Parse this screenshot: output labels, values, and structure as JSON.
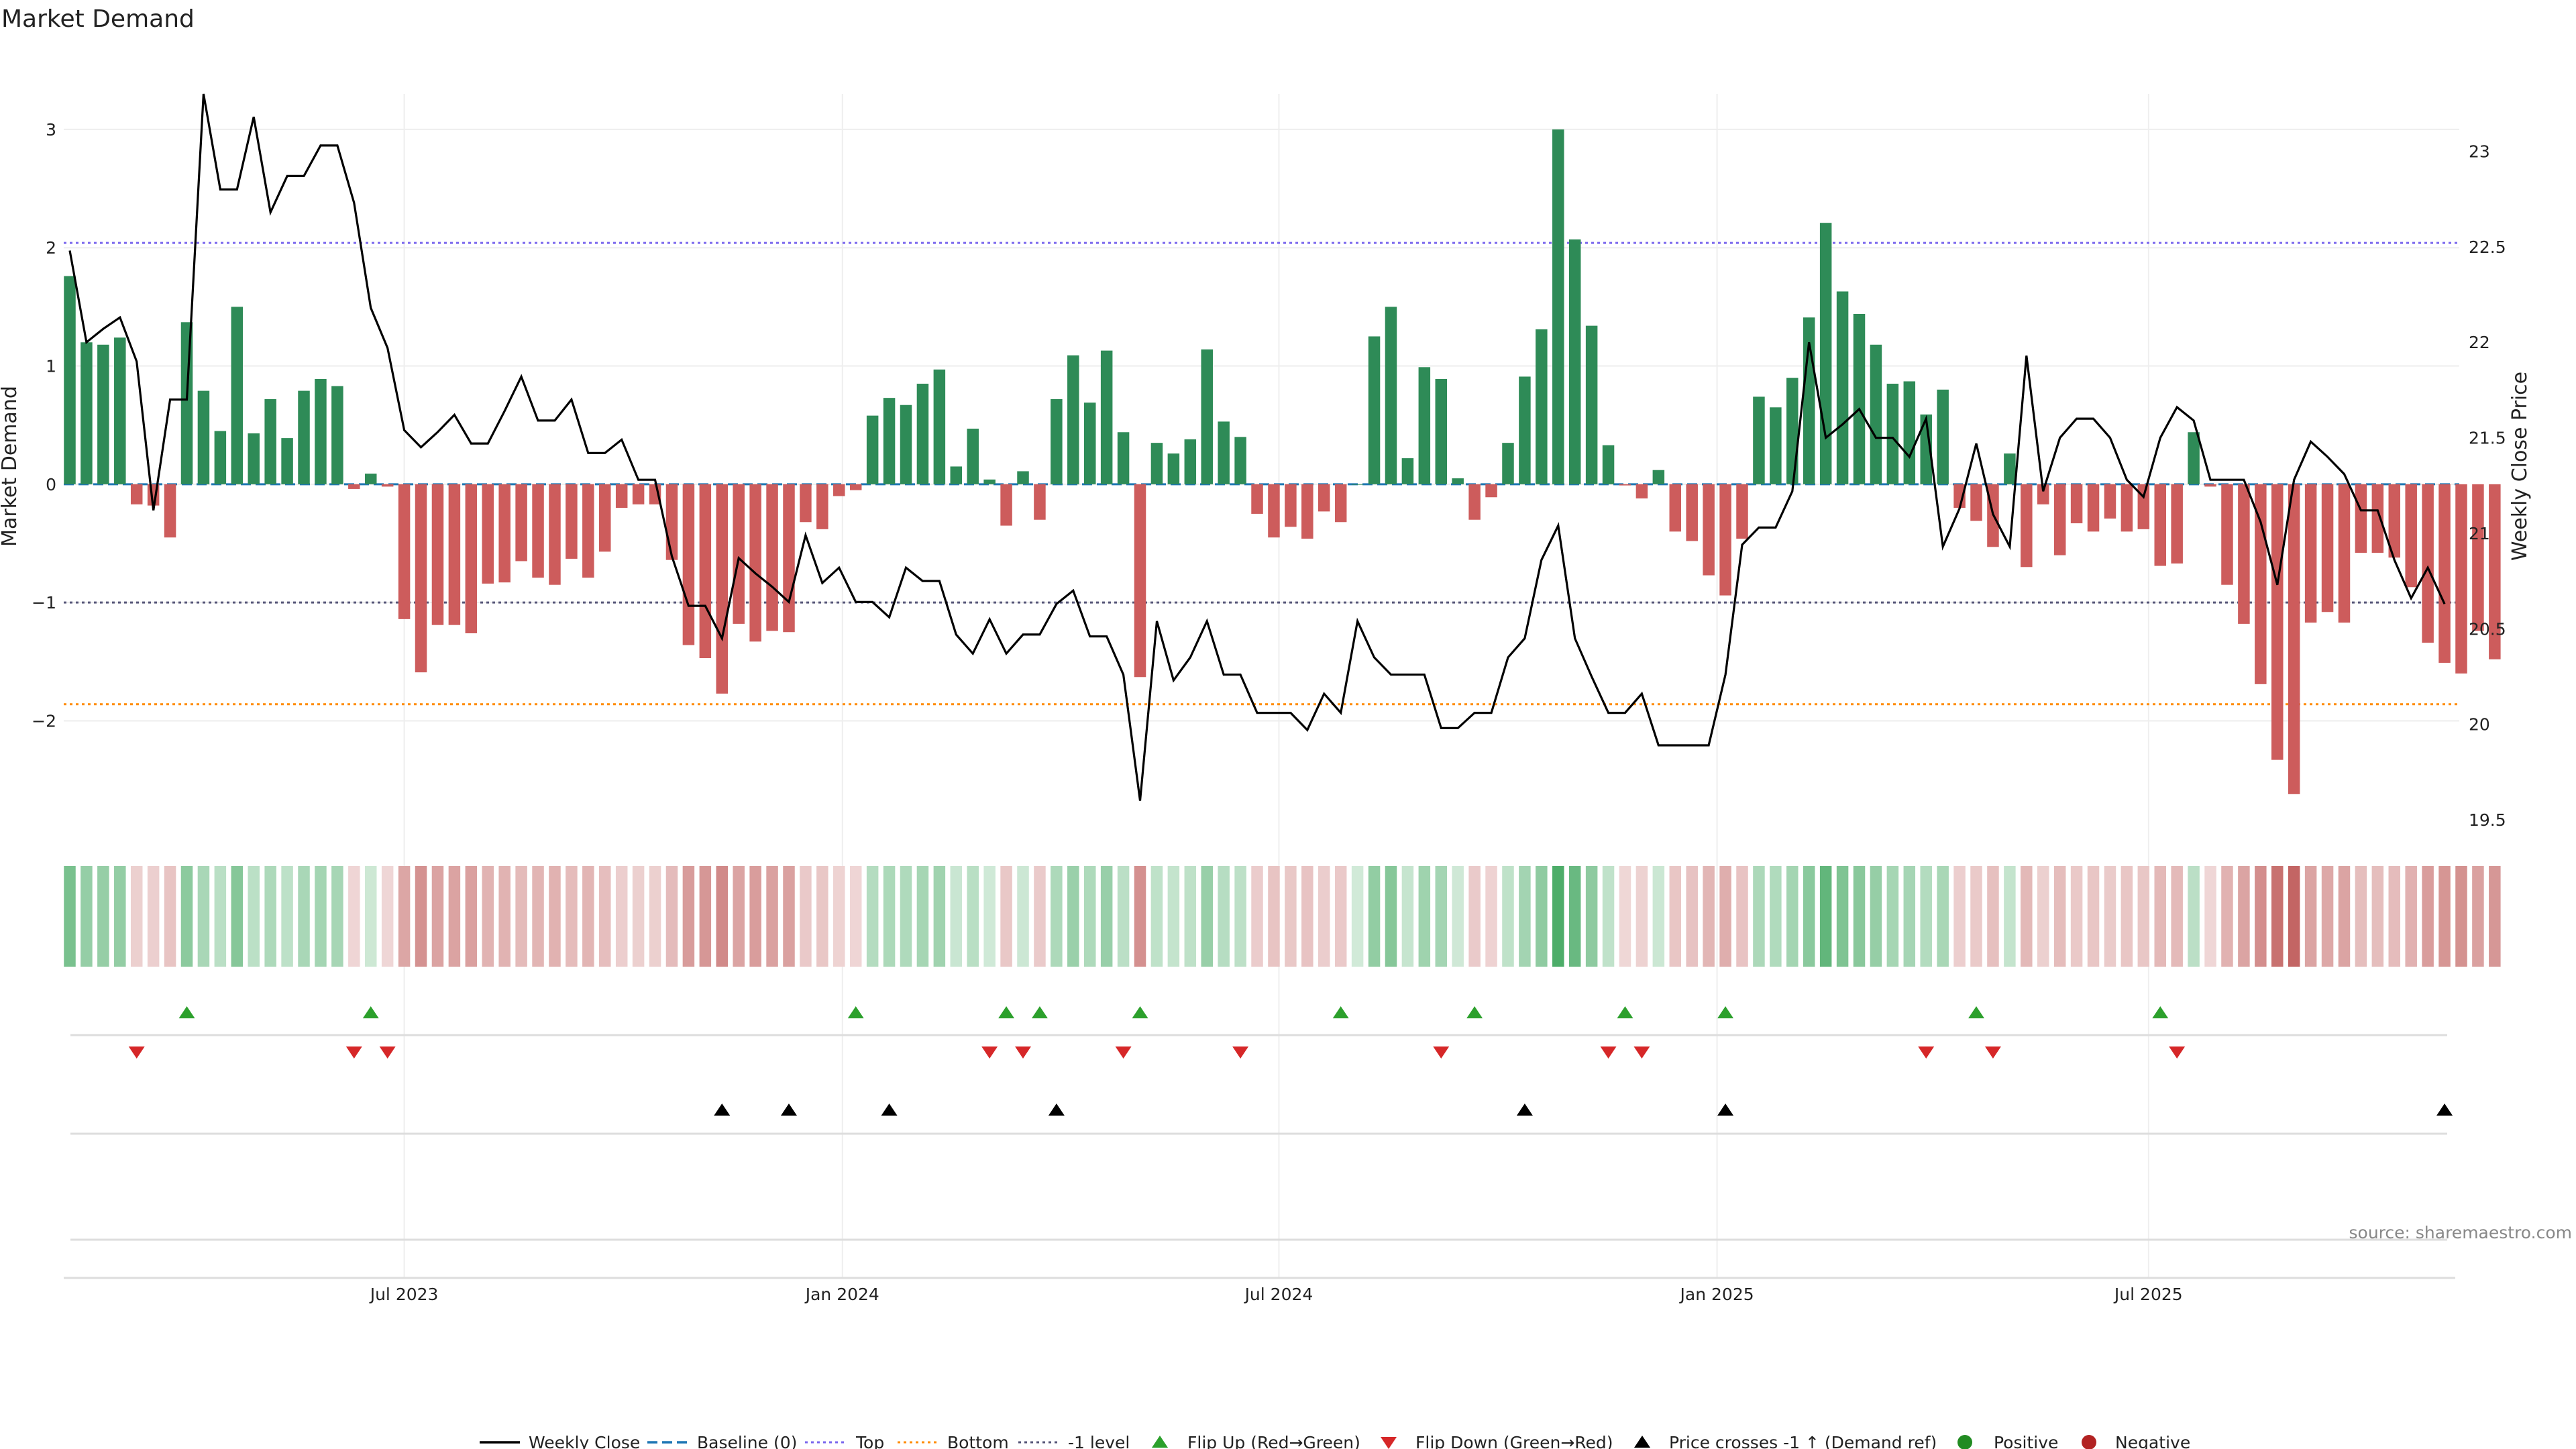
{
  "chart_data": {
    "type": "bar",
    "title": "Market Demand",
    "ylabel": "Market Demand",
    "y2label": "Weekly Close Price",
    "ylim": [
      -2.95,
      3.3
    ],
    "y2lim": [
      19.43,
      23.3
    ],
    "yticks": [
      -2,
      -1,
      0,
      1,
      2,
      3
    ],
    "ytick_labels": [
      "−2",
      "−1",
      "0",
      "1",
      "2",
      "3"
    ],
    "y2ticks": [
      19.5,
      20,
      20.5,
      21,
      21.5,
      22,
      22.5,
      23
    ],
    "y2tick_labels": [
      "19.5",
      "20",
      "20.5",
      "21",
      "21.5",
      "22",
      "22.5",
      "23"
    ],
    "x_ticks": [
      {
        "week": 20,
        "label": "Jul 2023"
      },
      {
        "week": 46.2,
        "label": "Jan 2024"
      },
      {
        "week": 72.3,
        "label": "Jul 2024"
      },
      {
        "week": 98.5,
        "label": "Jan 2025"
      },
      {
        "week": 124.3,
        "label": "Jul 2025"
      }
    ],
    "reference_lines": {
      "top": 2.04,
      "bottom": -1.86,
      "minus_one": -1
    },
    "demand": [
      1.76,
      1.2,
      1.18,
      1.24,
      -0.17,
      -0.18,
      -0.45,
      1.37,
      0.79,
      0.45,
      1.5,
      0.43,
      0.72,
      0.39,
      0.79,
      0.89,
      0.83,
      -0.04,
      0.09,
      -0.02,
      -1.14,
      -1.59,
      -1.19,
      -1.19,
      -1.26,
      -0.84,
      -0.83,
      -0.65,
      -0.79,
      -0.85,
      -0.63,
      -0.79,
      -0.57,
      -0.2,
      -0.17,
      -0.17,
      -0.64,
      -1.36,
      -1.47,
      -1.77,
      -1.18,
      -1.33,
      -1.24,
      -1.25,
      -0.32,
      -0.38,
      -0.1,
      -0.05,
      0.58,
      0.73,
      0.67,
      0.85,
      0.97,
      0.15,
      0.47,
      0.04,
      -0.35,
      0.11,
      -0.3,
      0.72,
      1.09,
      0.69,
      1.13,
      0.44,
      -1.63,
      0.35,
      0.26,
      0.38,
      1.14,
      0.53,
      0.4,
      -0.25,
      -0.45,
      -0.36,
      -0.46,
      -0.23,
      -0.32,
      0,
      1.25,
      1.5,
      0.22,
      0.99,
      0.89,
      0.05,
      -0.3,
      -0.11,
      0.35,
      0.91,
      1.31,
      3,
      2.07,
      1.34,
      0.33,
      -0.01,
      -0.12,
      0.12,
      -0.4,
      -0.48,
      -0.77,
      -0.94,
      -0.46,
      0.74,
      0.65,
      0.9,
      1.41,
      2.21,
      1.63,
      1.44,
      1.18,
      0.85,
      0.87,
      0.59,
      0.8,
      -0.2,
      -0.31,
      -0.53,
      0.26,
      -0.7,
      -0.17,
      -0.6,
      -0.33,
      -0.4,
      -0.29,
      -0.4,
      -0.38,
      -0.69,
      -0.67,
      0.44,
      -0.02,
      -0.85,
      -1.18,
      -1.69,
      -2.33,
      -2.62,
      -1.17,
      -1.08,
      -1.17,
      -0.58,
      -0.58,
      -0.62,
      -0.87,
      -1.34,
      -1.51,
      -1.6,
      -1.24,
      -1.48
    ],
    "weekly_close": [
      22.48,
      22,
      22.07,
      22.13,
      21.9,
      21.12,
      21.7,
      21.7,
      23.3,
      22.8,
      22.8,
      23.18,
      22.68,
      22.87,
      22.87,
      23.03,
      23.03,
      22.73,
      22.18,
      21.97,
      21.54,
      21.45,
      21.53,
      21.62,
      21.47,
      21.47,
      21.64,
      21.82,
      21.59,
      21.59,
      21.7,
      21.42,
      21.42,
      21.49,
      21.28,
      21.28,
      20.88,
      20.62,
      20.62,
      20.45,
      20.87,
      20.79,
      20.72,
      20.64,
      20.99,
      20.74,
      20.82,
      20.64,
      20.64,
      20.56,
      20.82,
      20.75,
      20.75,
      20.47,
      20.37,
      20.55,
      20.37,
      20.47,
      20.47,
      20.63,
      20.7,
      20.46,
      20.46,
      20.26,
      19.6,
      20.54,
      20.23,
      20.35,
      20.54,
      20.26,
      20.26,
      20.06,
      20.06,
      20.06,
      19.97,
      20.16,
      20.06,
      20.54,
      20.35,
      20.26,
      20.26,
      20.26,
      19.98,
      19.98,
      20.06,
      20.06,
      20.35,
      20.45,
      20.86,
      21.04,
      20.45,
      20.25,
      20.06,
      20.06,
      20.16,
      19.89,
      19.89,
      19.89,
      19.89,
      20.26,
      20.94,
      21.03,
      21.03,
      21.22,
      22,
      21.5,
      21.57,
      21.65,
      21.5,
      21.5,
      21.4,
      21.6,
      20.93,
      21.13,
      21.47,
      21.1,
      20.93,
      21.93,
      21.22,
      21.5,
      21.6,
      21.6,
      21.5,
      21.28,
      21.19,
      21.5,
      21.66,
      21.59,
      21.28,
      21.28,
      21.28,
      21.06,
      20.73,
      21.28,
      21.48,
      21.4,
      21.31,
      21.12,
      21.12,
      20.86,
      20.66,
      20.82,
      20.63
    ],
    "flip_up_weeks": [
      7,
      18,
      47,
      56,
      58,
      64,
      76,
      84,
      93,
      99,
      114,
      125
    ],
    "flip_down_weeks": [
      4,
      17,
      19,
      55,
      57,
      63,
      70,
      82,
      92,
      94,
      111,
      115,
      126
    ],
    "price_cross_weeks": [
      39,
      43,
      49,
      59,
      87,
      99,
      142
    ],
    "legend": {
      "weekly_close": "Weekly Close",
      "baseline": "Baseline (0)",
      "top": "Top",
      "bottom": "Bottom",
      "minus_one": "-1 level",
      "flip_up": "Flip Up (Red→Green)",
      "flip_down": "Flip Down (Green→Red)",
      "price_cross": "Price crosses -1 ↑ (Demand ref)",
      "positive": "Positive",
      "negative": "Negative"
    },
    "source": "source: sharemaestro.com"
  },
  "colors": {
    "positive": "#2e8b57",
    "negative": "#cd5c5c",
    "price_line": "#000000",
    "baseline": "#1f77b4",
    "top": "#7b68ee",
    "bottom": "#ff8c00",
    "minus_one": "#555577",
    "flip_up": "#2ca02c",
    "flip_down": "#d62728",
    "cross": "#000000",
    "legend_positive": "#228b22",
    "legend_negative": "#b22222"
  }
}
